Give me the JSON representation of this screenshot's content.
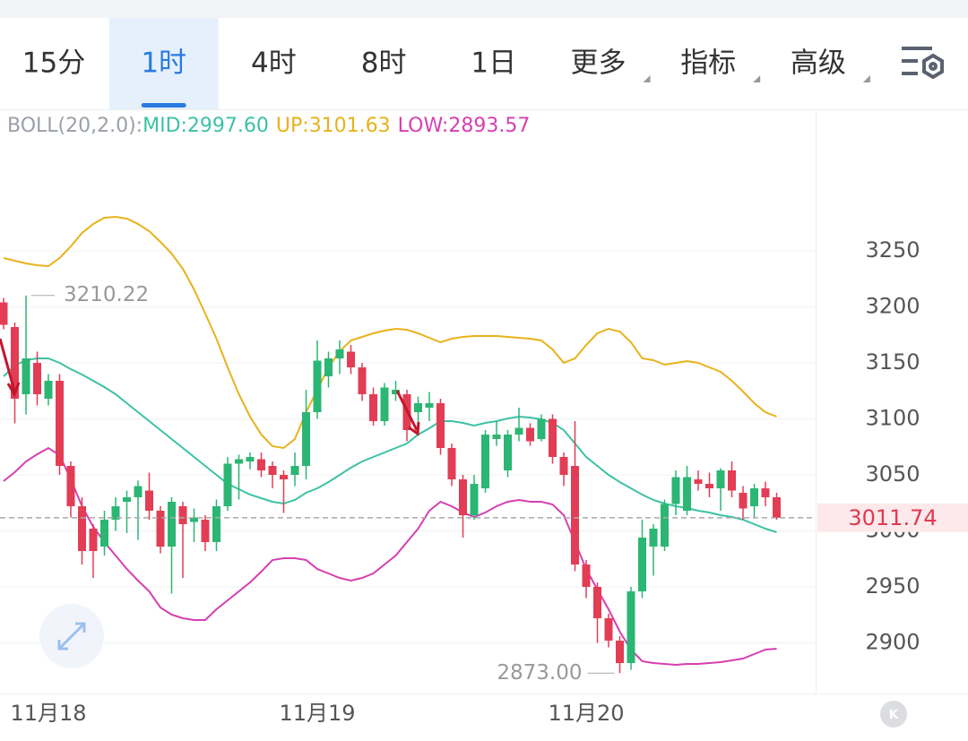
{
  "tabs": [
    {
      "label": "15分",
      "dropdown": false
    },
    {
      "label": "1时",
      "dropdown": false
    },
    {
      "label": "4时",
      "dropdown": false
    },
    {
      "label": "8时",
      "dropdown": false
    },
    {
      "label": "1日",
      "dropdown": false
    },
    {
      "label": "更多",
      "dropdown": true
    },
    {
      "label": "指标",
      "dropdown": true
    },
    {
      "label": "高级",
      "dropdown": true
    }
  ],
  "selected_tab": 1,
  "chart_data": {
    "type": "candlestick",
    "indicator": "BOLL(20,2.0):",
    "categories": [
      null,
      null,
      null,
      null,
      "11月18",
      null,
      null,
      null,
      null,
      null,
      null,
      null,
      null,
      null,
      null,
      null,
      null,
      null,
      null,
      null,
      null,
      null,
      null,
      null,
      null,
      null,
      null,
      null,
      "11月19",
      null,
      null,
      null,
      null,
      null,
      null,
      null,
      null,
      null,
      null,
      null,
      null,
      null,
      null,
      null,
      null,
      null,
      null,
      null,
      null,
      null,
      null,
      null,
      "11月20",
      null,
      null,
      null,
      null,
      null,
      null,
      null,
      null,
      null,
      null,
      null,
      null,
      null,
      null,
      null,
      null,
      null
    ],
    "open": [
      3204,
      3182,
      3122,
      3150,
      3118,
      3134,
      3058,
      3022,
      3002,
      2986,
      3010,
      3026,
      3030,
      3036,
      3018,
      2986,
      3022,
      3008,
      3010,
      2990,
      3022,
      3060,
      3062,
      3064,
      3058,
      3050,
      3050,
      3058,
      3106,
      3138,
      3154,
      3160,
      3146,
      3122,
      3098,
      3122,
      3122,
      3106,
      3110,
      3114,
      3074,
      3046,
      3014,
      3038,
      3082,
      3054,
      3086,
      3092,
      3082,
      3100,
      3066,
      3058,
      2970,
      2950,
      2922,
      2902,
      2882,
      2946,
      2986,
      2986,
      3024,
      3018,
      3046,
      3042,
      3038,
      3054,
      3034,
      3022,
      3038,
      3030
    ],
    "high": [
      3208,
      3186,
      3210.22,
      3160,
      3140,
      3140,
      3062,
      3030,
      3006,
      3018,
      3030,
      3036,
      3045,
      3052,
      3022,
      3030,
      3026,
      3020,
      3014,
      3028,
      3066,
      3068,
      3070,
      3070,
      3062,
      3054,
      3070,
      3126,
      3170,
      3160,
      3170,
      3166,
      3150,
      3128,
      3132,
      3134,
      3126,
      3120,
      3124,
      3118,
      3078,
      3050,
      3050,
      3090,
      3098,
      3090,
      3110,
      3096,
      3104,
      3104,
      3070,
      3098,
      2974,
      2954,
      2926,
      2906,
      2950,
      3010,
      3006,
      3028,
      3054,
      3058,
      3054,
      3052,
      3056,
      3062,
      3040,
      3042,
      3044,
      3034
    ],
    "low": [
      3180,
      3096,
      3104,
      3112,
      3112,
      3050,
      3012,
      2970,
      2958,
      2978,
      3000,
      2998,
      2992,
      3010,
      2980,
      2944,
      2958,
      2990,
      2982,
      2982,
      3018,
      3028,
      3055,
      3048,
      3038,
      3016,
      3040,
      3046,
      3100,
      3128,
      3140,
      3140,
      3116,
      3094,
      3094,
      3116,
      3080,
      3094,
      3098,
      3068,
      3040,
      2994,
      3010,
      3034,
      3076,
      3048,
      3080,
      3076,
      3080,
      3060,
      3040,
      2964,
      2940,
      2900,
      2896,
      2873,
      2876,
      2940,
      2960,
      2982,
      3014,
      3014,
      3036,
      3030,
      3018,
      3030,
      3010,
      3012,
      3022,
      3010
    ],
    "close": [
      3184,
      3118,
      3154,
      3122,
      3134,
      3058,
      3022,
      2982,
      2982,
      3010,
      3022,
      3030,
      3040,
      3018,
      2986,
      3026,
      3006,
      3012,
      2990,
      3022,
      3060,
      3064,
      3066,
      3054,
      3050,
      3046,
      3058,
      3106,
      3152,
      3154,
      3162,
      3146,
      3122,
      3098,
      3128,
      3126,
      3090,
      3114,
      3114,
      3074,
      3046,
      3014,
      3042,
      3086,
      3086,
      3086,
      3092,
      3080,
      3100,
      3066,
      3050,
      2970,
      2950,
      2922,
      2902,
      2882,
      2946,
      2994,
      3002,
      3024,
      3048,
      3048,
      3042,
      3038,
      3054,
      3036,
      3020,
      3038,
      3030,
      3011.74
    ],
    "up_color": "#2bb673",
    "down_color": "#e23d55",
    "series": [
      {
        "name": "MID:2997.60",
        "color": "#3cc2a6",
        "values": [
          3138,
          3147.6,
          3152.4,
          3154,
          3154,
          3150,
          3144.4,
          3139.6,
          3134,
          3128.4,
          3122,
          3114,
          3106,
          3098,
          3090,
          3082,
          3074,
          3066,
          3058,
          3050,
          3042,
          3037.2,
          3032.4,
          3029.2,
          3026,
          3024.4,
          3027.6,
          3034,
          3038,
          3043.6,
          3050,
          3056.4,
          3062,
          3066,
          3070,
          3074,
          3078,
          3086,
          3091.6,
          3098,
          3098,
          3096.4,
          3094,
          3096.4,
          3098,
          3100.4,
          3102,
          3101.2,
          3099.6,
          3096.4,
          3090,
          3078,
          3066,
          3058,
          3050,
          3043.6,
          3038,
          3032.4,
          3027.6,
          3024.4,
          3022,
          3020.4,
          3018,
          3016.4,
          3014,
          3012.4,
          3010,
          3006,
          3002,
          2998.8
        ]
      },
      {
        "name": "UP:3101.63",
        "color": "#e8b21c",
        "values": [
          3243.6,
          3241.2,
          3238.8,
          3237.2,
          3236.4,
          3243.6,
          3254,
          3266,
          3274,
          3279.6,
          3280.4,
          3278.8,
          3274,
          3267.6,
          3258,
          3247.6,
          3234,
          3215.6,
          3194,
          3171.6,
          3146,
          3122,
          3102,
          3086,
          3075.6,
          3074,
          3082,
          3106,
          3126,
          3146,
          3160.4,
          3170,
          3173.2,
          3176.4,
          3178.8,
          3180.4,
          3179.6,
          3176.4,
          3172.4,
          3168.4,
          3171.6,
          3173.2,
          3174,
          3174,
          3174,
          3173.2,
          3172.4,
          3171.6,
          3170,
          3162,
          3150,
          3154,
          3166,
          3176.4,
          3180.4,
          3178,
          3168.4,
          3154,
          3152.4,
          3148.4,
          3150,
          3151.6,
          3150,
          3146,
          3142,
          3134,
          3124.4,
          3114,
          3106,
          3102
        ]
      },
      {
        "name": "LOW:2893.57",
        "color": "#d63fb0",
        "values": [
          3044.4,
          3052.4,
          3062,
          3068.4,
          3074,
          3067.6,
          3046,
          3022,
          3003.6,
          2990,
          2978,
          2966,
          2955.6,
          2946,
          2931.6,
          2925.2,
          2922,
          2920.4,
          2920.4,
          2930,
          2938,
          2946,
          2954,
          2963.6,
          2974,
          2975.6,
          2975.6,
          2974,
          2966,
          2962,
          2958,
          2955.6,
          2958,
          2962,
          2970,
          2978,
          2990,
          3002,
          3018,
          3026,
          3022,
          3016.4,
          3012.4,
          3016.4,
          3022,
          3026,
          3027.6,
          3026,
          3026,
          3023.6,
          3014,
          2990,
          2966,
          2947.6,
          2930,
          2910,
          2894,
          2883.6,
          2882,
          2881.2,
          2880.4,
          2881.2,
          2881.2,
          2882,
          2882.8,
          2884.4,
          2886,
          2890,
          2894,
          2894.8
        ]
      }
    ],
    "ylim": [
      2854,
      3374
    ],
    "yticks": [
      2900,
      2950,
      3000,
      3050,
      3100,
      3150,
      3200,
      3250
    ],
    "grid": true,
    "last_price": 3011.74,
    "max_label": 3210.22,
    "min_label": {
      "value": 2873,
      "label": "2873.00"
    }
  }
}
